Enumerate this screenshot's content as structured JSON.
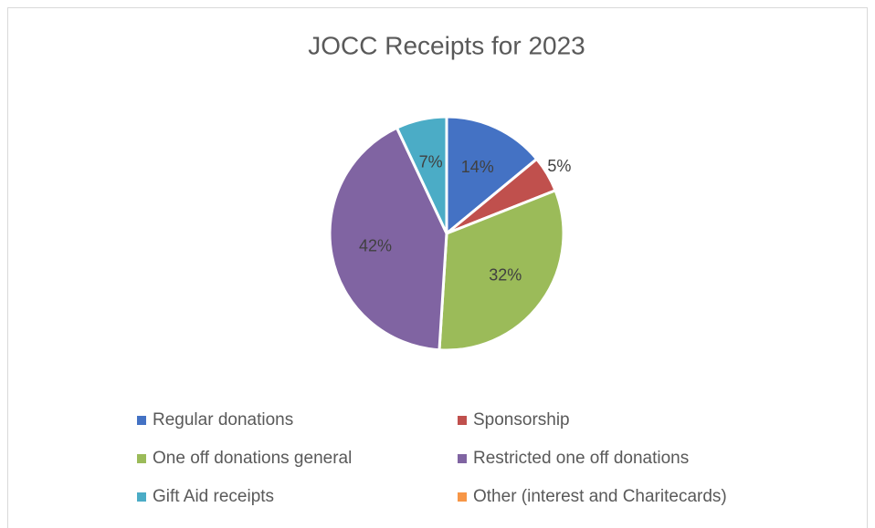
{
  "chart_data": {
    "type": "pie",
    "title": "JOCC Receipts for 2023",
    "categories": [
      "Regular donations",
      "Sponsorship",
      "One off donations general",
      "Restricted one off donations",
      "Gift Aid receipts",
      "Other (interest and Charitecards)"
    ],
    "values": [
      14,
      5,
      32,
      42,
      7,
      0
    ],
    "value_labels": [
      "14%",
      "5%",
      "32%",
      "42%",
      "7%",
      null
    ],
    "colors": [
      "#4472c4",
      "#c0504d",
      "#9bbb59",
      "#8064a2",
      "#4bacc6",
      "#f79646"
    ],
    "legend": "bottom"
  }
}
